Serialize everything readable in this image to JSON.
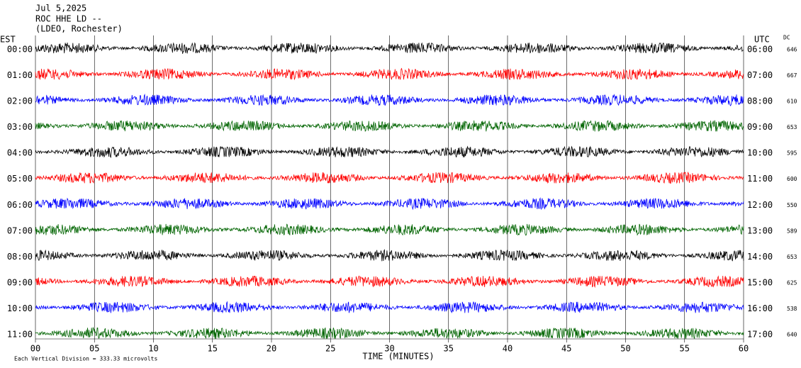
{
  "chart_data": {
    "type": "helicorder",
    "title_lines": [
      "Jul 5,2025",
      "ROC HHE LD --",
      "(LDEO, Rochester)"
    ],
    "left_axis_label": "EST",
    "right_axis_label": "UTC",
    "dc_label": "DC",
    "rows": [
      {
        "est": "00:00",
        "utc": "06:00",
        "dc": 646,
        "color": "#000000"
      },
      {
        "est": "01:00",
        "utc": "07:00",
        "dc": 667,
        "color": "#ff0000"
      },
      {
        "est": "02:00",
        "utc": "08:00",
        "dc": 610,
        "color": "#0000ff"
      },
      {
        "est": "03:00",
        "utc": "09:00",
        "dc": 653,
        "color": "#006400"
      },
      {
        "est": "04:00",
        "utc": "10:00",
        "dc": 595,
        "color": "#000000"
      },
      {
        "est": "05:00",
        "utc": "11:00",
        "dc": 600,
        "color": "#ff0000"
      },
      {
        "est": "06:00",
        "utc": "12:00",
        "dc": 550,
        "color": "#0000ff"
      },
      {
        "est": "07:00",
        "utc": "13:00",
        "dc": 589,
        "color": "#006400"
      },
      {
        "est": "08:00",
        "utc": "14:00",
        "dc": 653,
        "color": "#000000"
      },
      {
        "est": "09:00",
        "utc": "15:00",
        "dc": 625,
        "color": "#ff0000"
      },
      {
        "est": "10:00",
        "utc": "16:00",
        "dc": 538,
        "color": "#0000ff"
      },
      {
        "est": "11:00",
        "utc": "17:00",
        "dc": 640,
        "color": "#006400"
      }
    ],
    "xlim": [
      0,
      60
    ],
    "xticks": [
      {
        "value": 0,
        "label": "00"
      },
      {
        "value": 5,
        "label": "05"
      },
      10,
      15,
      20,
      25,
      30,
      35,
      40,
      45,
      50,
      55,
      60
    ],
    "xlabel": "TIME (MINUTES)",
    "footnote": "Each Vertical Division =  333.33 microvolts"
  }
}
